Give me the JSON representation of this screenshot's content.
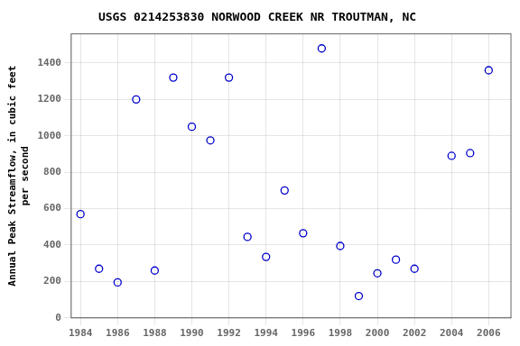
{
  "chart_data": {
    "type": "scatter",
    "title": "USGS 0214253830 NORWOOD CREEK NR TROUTMAN, NC",
    "ylabel": [
      "Annual Peak Streamflow, in cubic feet",
      "per second"
    ],
    "x": [
      1984,
      1985,
      1986,
      1987,
      1988,
      1989,
      1990,
      1991,
      1992,
      1993,
      1994,
      1995,
      1996,
      1997,
      1998,
      1999,
      2000,
      2001,
      2002,
      2004,
      2005,
      2006
    ],
    "values": [
      570,
      270,
      195,
      1200,
      260,
      1320,
      1050,
      975,
      1320,
      445,
      335,
      700,
      465,
      1480,
      395,
      120,
      245,
      320,
      270,
      890,
      905,
      1360
    ],
    "color": "#0000cc",
    "marker": "circle",
    "xlim": [
      1983.5,
      2007.2
    ],
    "ylim": [
      0,
      1560
    ],
    "xticks": [
      1984,
      1986,
      1988,
      1990,
      1992,
      1994,
      1996,
      1998,
      2000,
      2002,
      2004,
      2006
    ],
    "yticks": [
      0,
      200,
      400,
      600,
      800,
      1000,
      1200,
      1400
    ],
    "grid": true
  }
}
